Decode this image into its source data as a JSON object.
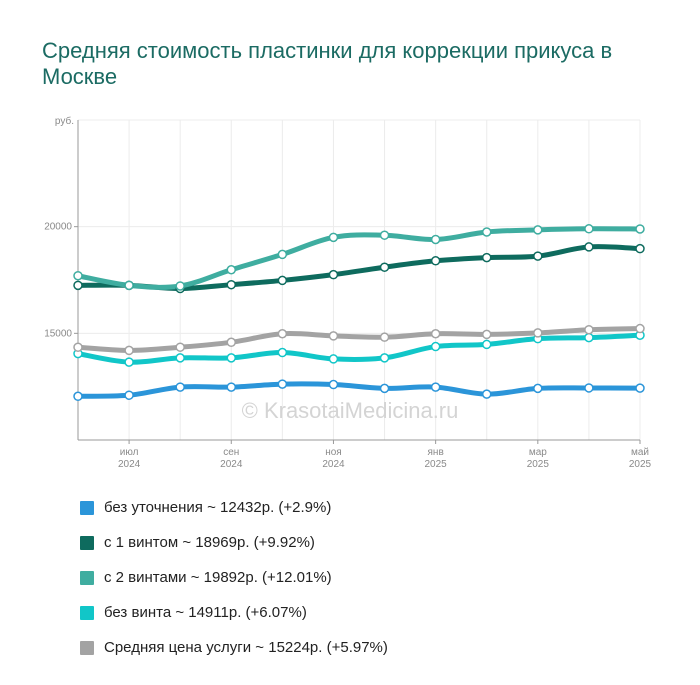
{
  "title": "Средняя стоимость пластинки для коррекции прикуса в Москве",
  "watermark": "© KrasotaiMedicina.ru",
  "chart_data": {
    "type": "line",
    "title": "Средняя стоимость пластинки для коррекции прикуса в Москве",
    "ylabel": "руб.",
    "ylim": [
      10000,
      25000
    ],
    "yticks": [
      20000,
      15000
    ],
    "x": [
      "2024-06",
      "2024-07",
      "2024-08",
      "2024-09",
      "2024-10",
      "2024-11",
      "2024-12",
      "2025-01",
      "2025-02",
      "2025-03",
      "2025-04",
      "2025-05"
    ],
    "xtick_labels": [
      {
        "month": "июл",
        "year": "2024"
      },
      {
        "month": "сен",
        "year": "2024"
      },
      {
        "month": "ноя",
        "year": "2024"
      },
      {
        "month": "янв",
        "year": "2025"
      },
      {
        "month": "мар",
        "year": "2025"
      },
      {
        "month": "май",
        "year": "2025"
      }
    ],
    "grid": true,
    "legend": "bottom",
    "series": [
      {
        "name": "без уточнения",
        "legend_text": "без уточнения ~ 12432р. (+2.9%)",
        "color": "#2b95d9",
        "values": [
          12050,
          12100,
          12480,
          12480,
          12620,
          12600,
          12420,
          12480,
          12150,
          12420,
          12440,
          12432
        ]
      },
      {
        "name": "с 1 винтом",
        "legend_text": "с 1 винтом ~ 18969р. (+9.92%)",
        "color": "#0e6b5e",
        "values": [
          17250,
          17250,
          17100,
          17280,
          17480,
          17750,
          18100,
          18400,
          18550,
          18620,
          19050,
          18969
        ]
      },
      {
        "name": "с 2 винтами",
        "legend_text": "с 2 винтами ~ 19892р. (+12.01%)",
        "color": "#3fada0",
        "values": [
          17700,
          17250,
          17220,
          17980,
          18700,
          19500,
          19600,
          19400,
          19750,
          19850,
          19900,
          19892
        ]
      },
      {
        "name": "без винта",
        "legend_text": "без винта ~ 14911р. (+6.07%)",
        "color": "#11c6c8",
        "values": [
          14050,
          13650,
          13850,
          13850,
          14100,
          13800,
          13850,
          14380,
          14480,
          14750,
          14800,
          14911
        ]
      },
      {
        "name": "Средняя цена услуги",
        "legend_text": "Средняя цена услуги ~ 15224р. (+5.97%)",
        "color": "#a3a3a3",
        "values": [
          14350,
          14200,
          14350,
          14580,
          14980,
          14880,
          14820,
          14980,
          14950,
          15020,
          15170,
          15224
        ]
      }
    ]
  }
}
